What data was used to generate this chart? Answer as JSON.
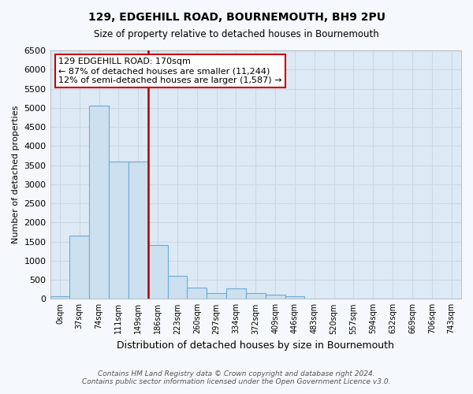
{
  "title": "129, EDGEHILL ROAD, BOURNEMOUTH, BH9 2PU",
  "subtitle": "Size of property relative to detached houses in Bournemouth",
  "xlabel": "Distribution of detached houses by size in Bournemouth",
  "ylabel": "Number of detached properties",
  "bar_color": "#cce0f0",
  "bar_edge_color": "#6daad4",
  "background_color": "#ddeaf5",
  "fig_background_color": "#f5f8fc",
  "grid_color": "#c8d8e8",
  "categories": [
    "0sqm",
    "37sqm",
    "74sqm",
    "111sqm",
    "149sqm",
    "186sqm",
    "223sqm",
    "260sqm",
    "297sqm",
    "334sqm",
    "372sqm",
    "409sqm",
    "446sqm",
    "483sqm",
    "520sqm",
    "557sqm",
    "594sqm",
    "632sqm",
    "669sqm",
    "706sqm",
    "743sqm"
  ],
  "values": [
    75,
    1650,
    5050,
    3600,
    3600,
    1400,
    600,
    300,
    150,
    280,
    150,
    100,
    70,
    0,
    0,
    0,
    0,
    0,
    0,
    0,
    0
  ],
  "property_line_x": 5,
  "property_line_color": "#aa0000",
  "ylim": [
    0,
    6500
  ],
  "yticks": [
    0,
    500,
    1000,
    1500,
    2000,
    2500,
    3000,
    3500,
    4000,
    4500,
    5000,
    5500,
    6000,
    6500
  ],
  "annotation_text": "129 EDGEHILL ROAD: 170sqm\n← 87% of detached houses are smaller (11,244)\n12% of semi-detached houses are larger (1,587) →",
  "annotation_box_color": "#cc0000",
  "footer_line1": "Contains HM Land Registry data © Crown copyright and database right 2024.",
  "footer_line2": "Contains public sector information licensed under the Open Government Licence v3.0."
}
